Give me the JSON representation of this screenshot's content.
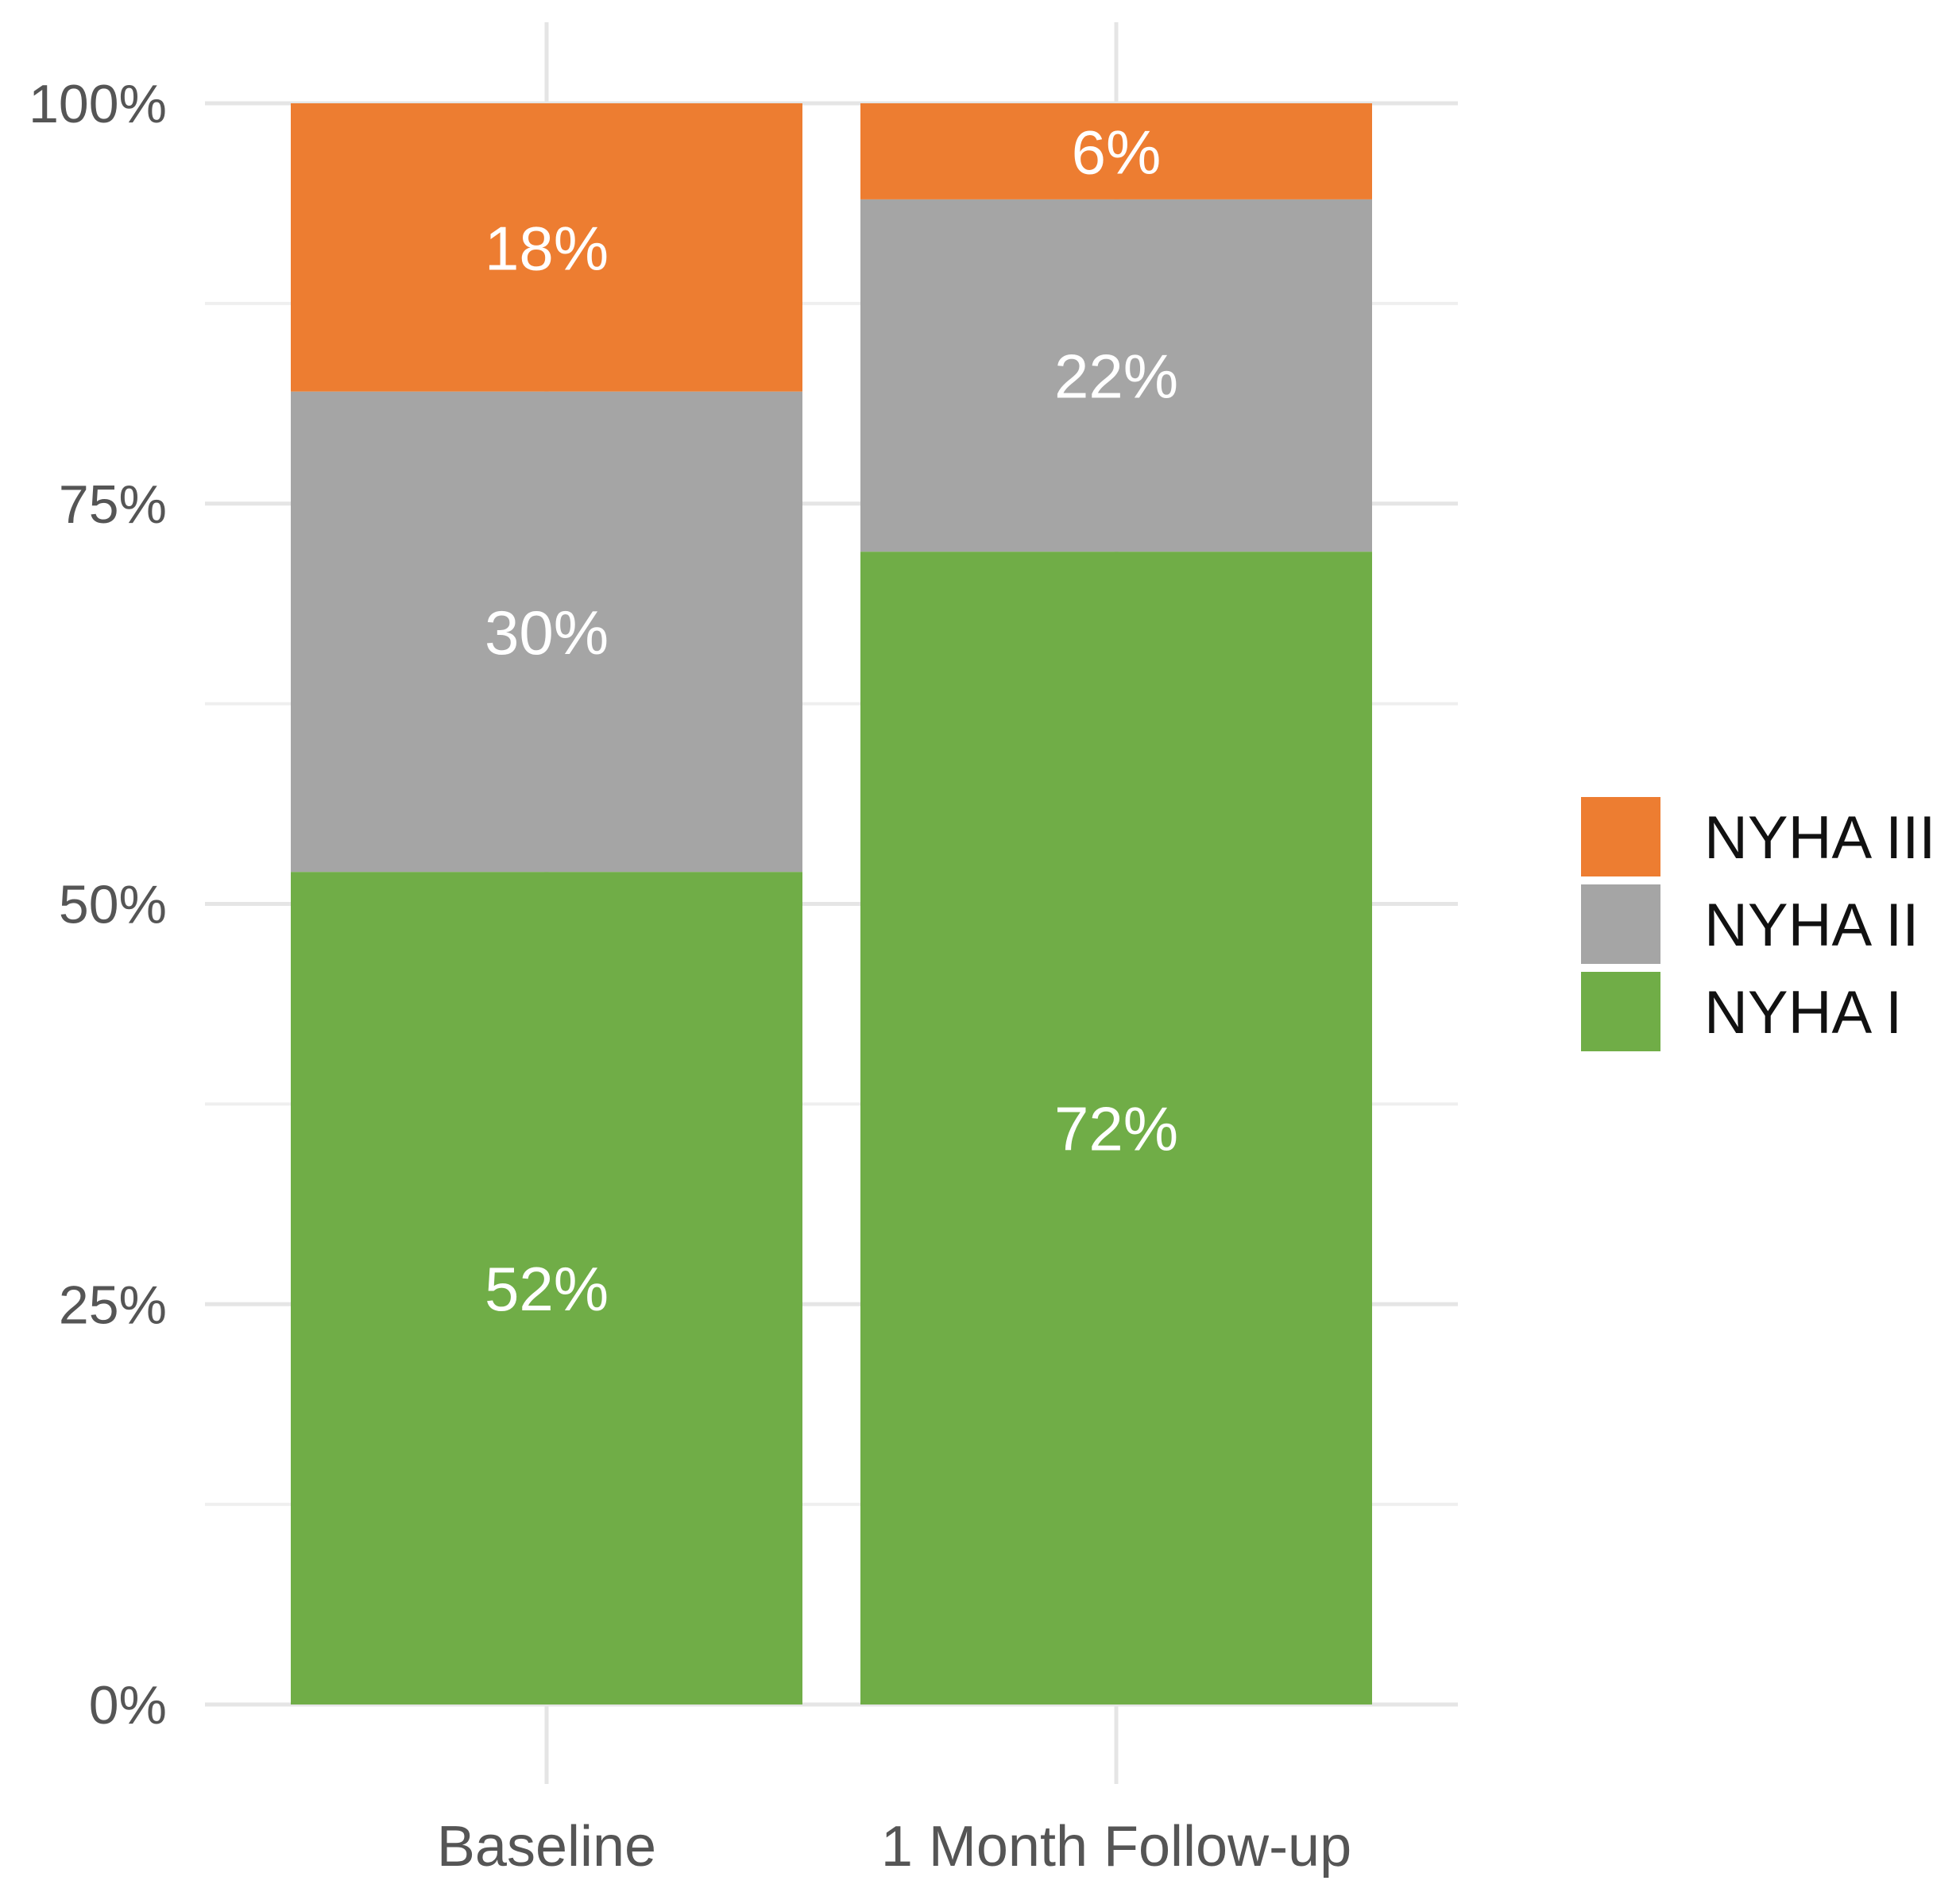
{
  "chart_data": {
    "type": "bar",
    "stacked": true,
    "title": "",
    "xlabel": "",
    "ylabel": "",
    "categories": [
      "Baseline",
      "1 Month Follow-up"
    ],
    "ylim": [
      0,
      100
    ],
    "y_ticks": [
      0,
      25,
      50,
      75,
      100
    ],
    "y_tick_labels": [
      "0%",
      "25%",
      "50%",
      "75%",
      "100%"
    ],
    "grid": true,
    "legend_position": "right",
    "series": [
      {
        "name": "NYHA I",
        "color": "#70AD47",
        "values": [
          52,
          72
        ],
        "labels": [
          "52%",
          "72%"
        ]
      },
      {
        "name": "NYHA II",
        "color": "#A5A5A5",
        "values": [
          30,
          22
        ],
        "labels": [
          "30%",
          "22%"
        ]
      },
      {
        "name": "NYHA III",
        "color": "#ED7D31",
        "values": [
          18,
          6
        ],
        "labels": [
          "18%",
          "6%"
        ]
      }
    ],
    "legend_order": [
      "NYHA III",
      "NYHA II",
      "NYHA I"
    ]
  }
}
